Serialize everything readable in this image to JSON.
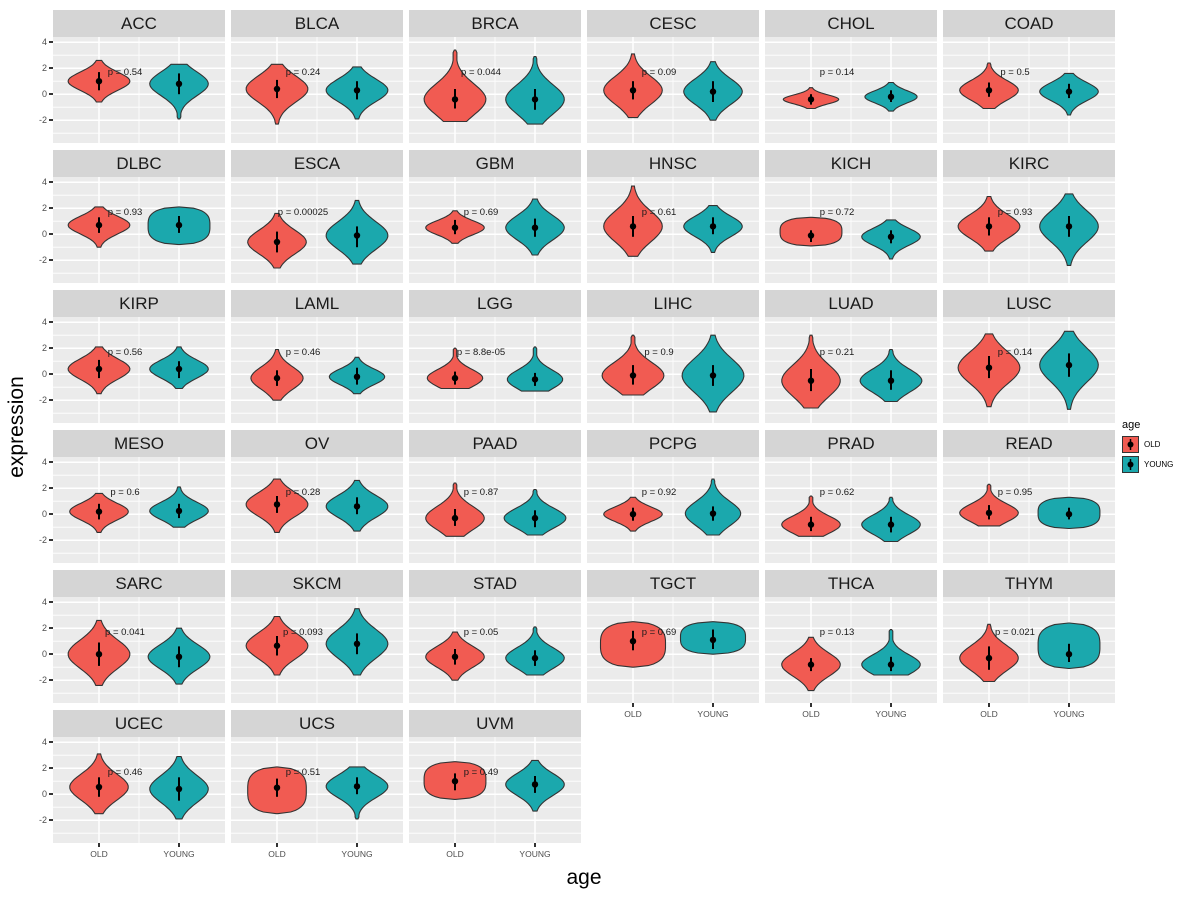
{
  "figure": {
    "y_axis_title": "expression",
    "x_axis_title": "age",
    "y_ticks": [
      4,
      2,
      0,
      -2
    ],
    "x_categories": [
      "OLD",
      "YOUNG"
    ],
    "legend": {
      "title": "age",
      "items": [
        {
          "label": "OLD",
          "color": "#F15B52"
        },
        {
          "label": "YOUNG",
          "color": "#1BA8AD"
        }
      ]
    },
    "colors": {
      "panel_background": "#EBEBEB",
      "strip_background": "#D5D5D5",
      "gridline": "#FFFFFF",
      "violin_outline": "#333333",
      "pointrange": "#000000",
      "tick_text": "#4D4D4D"
    }
  },
  "chart_data": {
    "type": "violin",
    "x_categories": [
      "OLD",
      "YOUNG"
    ],
    "y_axis": {
      "ticks": [
        4,
        2,
        0,
        -2
      ],
      "domain": [
        -3.75,
        4.4
      ]
    },
    "series_key": {
      "old_fields": "ext=[min,max] expression extent, med=median dot, iqr=[lo,hi] thick bar, w=relative max width"
    },
    "facets": [
      {
        "name": "ACC",
        "p": "p = 0.54",
        "old": {
          "ext": [
            -0.6,
            2.6
          ],
          "med": 1.0,
          "iqr": [
            0.3,
            1.7
          ],
          "w": 0.95
        },
        "young": {
          "ext": [
            -1.9,
            2.3
          ],
          "med": 0.8,
          "iqr": [
            0.0,
            1.6
          ],
          "w": 0.9
        }
      },
      {
        "name": "BLCA",
        "p": "p = 0.24",
        "old": {
          "ext": [
            -2.3,
            2.3
          ],
          "med": 0.4,
          "iqr": [
            -0.3,
            1.1
          ],
          "w": 0.95
        },
        "young": {
          "ext": [
            -1.9,
            2.1
          ],
          "med": 0.3,
          "iqr": [
            -0.4,
            1.0
          ],
          "w": 0.95
        }
      },
      {
        "name": "BRCA",
        "p": "p = 0.044",
        "old": {
          "ext": [
            -2.1,
            3.4
          ],
          "med": -0.4,
          "iqr": [
            -1.1,
            0.4
          ],
          "w": 0.95
        },
        "young": {
          "ext": [
            -2.3,
            2.9
          ],
          "med": -0.4,
          "iqr": [
            -1.2,
            0.4
          ],
          "w": 0.9
        }
      },
      {
        "name": "CESC",
        "p": "p = 0.09",
        "old": {
          "ext": [
            -1.8,
            3.1
          ],
          "med": 0.3,
          "iqr": [
            -0.4,
            1.0
          ],
          "w": 0.9
        },
        "young": {
          "ext": [
            -2.0,
            2.5
          ],
          "med": 0.2,
          "iqr": [
            -0.6,
            1.0
          ],
          "w": 0.9
        }
      },
      {
        "name": "CHOL",
        "p": "p = 0.14",
        "old": {
          "ext": [
            -1.1,
            0.5
          ],
          "med": -0.4,
          "iqr": [
            -0.8,
            0.0
          ],
          "w": 0.85
        },
        "young": {
          "ext": [
            -1.3,
            0.9
          ],
          "med": -0.2,
          "iqr": [
            -0.6,
            0.3
          ],
          "w": 0.8
        }
      },
      {
        "name": "COAD",
        "p": "p = 0.5",
        "old": {
          "ext": [
            -1.1,
            2.4
          ],
          "med": 0.3,
          "iqr": [
            -0.2,
            0.9
          ],
          "w": 0.9
        },
        "young": {
          "ext": [
            -1.6,
            1.6
          ],
          "med": 0.2,
          "iqr": [
            -0.3,
            0.8
          ],
          "w": 0.9
        }
      },
      {
        "name": "DLBC",
        "p": "p = 0.93",
        "old": {
          "ext": [
            -1.0,
            2.1
          ],
          "med": 0.7,
          "iqr": [
            0.1,
            1.3
          ],
          "w": 0.95
        },
        "young": {
          "ext": [
            -0.8,
            2.1
          ],
          "med": 0.7,
          "iqr": [
            0.1,
            1.4
          ],
          "w": 0.95,
          "shape": "blob"
        }
      },
      {
        "name": "ESCA",
        "p": "p = 0.00025",
        "old": {
          "ext": [
            -2.6,
            1.6
          ],
          "med": -0.6,
          "iqr": [
            -1.4,
            0.2
          ],
          "w": 0.9
        },
        "young": {
          "ext": [
            -2.3,
            2.6
          ],
          "med": -0.1,
          "iqr": [
            -1.0,
            0.6
          ],
          "w": 0.95
        }
      },
      {
        "name": "GBM",
        "p": "p = 0.69",
        "old": {
          "ext": [
            -0.7,
            1.8
          ],
          "med": 0.5,
          "iqr": [
            0.0,
            1.1
          ],
          "w": 0.9
        },
        "young": {
          "ext": [
            -1.6,
            2.7
          ],
          "med": 0.5,
          "iqr": [
            -0.2,
            1.2
          ],
          "w": 0.9
        }
      },
      {
        "name": "HNSC",
        "p": "p = 0.61",
        "old": {
          "ext": [
            -1.7,
            3.7
          ],
          "med": 0.6,
          "iqr": [
            -0.2,
            1.4
          ],
          "w": 0.9
        },
        "young": {
          "ext": [
            -1.4,
            2.2
          ],
          "med": 0.6,
          "iqr": [
            0.0,
            1.3
          ],
          "w": 0.9
        }
      },
      {
        "name": "KICH",
        "p": "p = 0.72",
        "old": {
          "ext": [
            -0.9,
            1.3
          ],
          "med": -0.1,
          "iqr": [
            -0.6,
            0.3
          ],
          "w": 0.95,
          "shape": "blob"
        },
        "young": {
          "ext": [
            -1.9,
            1.1
          ],
          "med": -0.2,
          "iqr": [
            -0.7,
            0.3
          ],
          "w": 0.9
        }
      },
      {
        "name": "KIRC",
        "p": "p = 0.93",
        "old": {
          "ext": [
            -1.3,
            2.9
          ],
          "med": 0.6,
          "iqr": [
            -0.1,
            1.3
          ],
          "w": 0.95
        },
        "young": {
          "ext": [
            -2.4,
            3.1
          ],
          "med": 0.6,
          "iqr": [
            -0.2,
            1.4
          ],
          "w": 0.9
        }
      },
      {
        "name": "KIRP",
        "p": "p = 0.56",
        "old": {
          "ext": [
            -1.5,
            2.1
          ],
          "med": 0.4,
          "iqr": [
            -0.3,
            1.1
          ],
          "w": 0.95
        },
        "young": {
          "ext": [
            -1.1,
            2.1
          ],
          "med": 0.4,
          "iqr": [
            -0.3,
            1.0
          ],
          "w": 0.9
        }
      },
      {
        "name": "LAML",
        "p": "p = 0.46",
        "old": {
          "ext": [
            -2.0,
            1.9
          ],
          "med": -0.3,
          "iqr": [
            -0.9,
            0.3
          ],
          "w": 0.8
        },
        "young": {
          "ext": [
            -1.5,
            1.3
          ],
          "med": -0.2,
          "iqr": [
            -0.8,
            0.5
          ],
          "w": 0.85
        }
      },
      {
        "name": "LGG",
        "p": "p = 8.8e-05",
        "old": {
          "ext": [
            -1.1,
            2.0
          ],
          "med": -0.3,
          "iqr": [
            -0.8,
            0.2
          ],
          "w": 0.85
        },
        "young": {
          "ext": [
            -1.3,
            2.1
          ],
          "med": -0.4,
          "iqr": [
            -0.9,
            0.1
          ],
          "w": 0.85
        }
      },
      {
        "name": "LIHC",
        "p": "p = 0.9",
        "old": {
          "ext": [
            -1.6,
            3.0
          ],
          "med": -0.1,
          "iqr": [
            -0.8,
            0.7
          ],
          "w": 0.95
        },
        "young": {
          "ext": [
            -2.9,
            3.0
          ],
          "med": -0.1,
          "iqr": [
            -0.9,
            0.7
          ],
          "w": 0.95
        }
      },
      {
        "name": "LUAD",
        "p": "p = 0.21",
        "old": {
          "ext": [
            -2.6,
            3.0
          ],
          "med": -0.5,
          "iqr": [
            -1.3,
            0.4
          ],
          "w": 0.9
        },
        "young": {
          "ext": [
            -2.1,
            1.9
          ],
          "med": -0.5,
          "iqr": [
            -1.2,
            0.3
          ],
          "w": 0.95
        }
      },
      {
        "name": "LUSC",
        "p": "p = 0.14",
        "old": {
          "ext": [
            -2.5,
            3.1
          ],
          "med": 0.5,
          "iqr": [
            -0.3,
            1.4
          ],
          "w": 0.95
        },
        "young": {
          "ext": [
            -2.7,
            3.3
          ],
          "med": 0.7,
          "iqr": [
            -0.2,
            1.6
          ],
          "w": 0.9
        }
      },
      {
        "name": "MESO",
        "p": "p = 0.6",
        "old": {
          "ext": [
            -1.4,
            1.6
          ],
          "med": 0.2,
          "iqr": [
            -0.4,
            0.8
          ],
          "w": 0.9
        },
        "young": {
          "ext": [
            -1.0,
            2.1
          ],
          "med": 0.25,
          "iqr": [
            -0.3,
            0.8
          ],
          "w": 0.9
        }
      },
      {
        "name": "OV",
        "p": "p = 0.28",
        "old": {
          "ext": [
            -1.4,
            2.7
          ],
          "med": 0.75,
          "iqr": [
            0.1,
            1.4
          ],
          "w": 0.95
        },
        "young": {
          "ext": [
            -1.3,
            2.6
          ],
          "med": 0.6,
          "iqr": [
            0.0,
            1.3
          ],
          "w": 0.95
        }
      },
      {
        "name": "PAAD",
        "p": "p = 0.87",
        "old": {
          "ext": [
            -1.7,
            2.4
          ],
          "med": -0.3,
          "iqr": [
            -0.9,
            0.4
          ],
          "w": 0.9
        },
        "young": {
          "ext": [
            -1.6,
            1.9
          ],
          "med": -0.3,
          "iqr": [
            -1.0,
            0.3
          ],
          "w": 0.95
        }
      },
      {
        "name": "PCPG",
        "p": "p = 0.92",
        "old": {
          "ext": [
            -1.3,
            1.3
          ],
          "med": 0.0,
          "iqr": [
            -0.5,
            0.5
          ],
          "w": 0.9
        },
        "young": {
          "ext": [
            -1.6,
            2.7
          ],
          "med": 0.05,
          "iqr": [
            -0.5,
            0.6
          ],
          "w": 0.85
        }
      },
      {
        "name": "PRAD",
        "p": "p = 0.62",
        "old": {
          "ext": [
            -1.7,
            1.4
          ],
          "med": -0.8,
          "iqr": [
            -1.3,
            -0.2
          ],
          "w": 0.9
        },
        "young": {
          "ext": [
            -2.1,
            1.3
          ],
          "med": -0.8,
          "iqr": [
            -1.4,
            -0.2
          ],
          "w": 0.9
        }
      },
      {
        "name": "READ",
        "p": "p = 0.95",
        "old": {
          "ext": [
            -0.9,
            2.3
          ],
          "med": 0.1,
          "iqr": [
            -0.4,
            0.7
          ],
          "w": 0.9
        },
        "young": {
          "ext": [
            -1.1,
            1.3
          ],
          "med": 0.0,
          "iqr": [
            -0.4,
            0.5
          ],
          "w": 0.95,
          "shape": "blob"
        }
      },
      {
        "name": "SARC",
        "p": "p = 0.041",
        "old": {
          "ext": [
            -2.4,
            2.6
          ],
          "med": 0.0,
          "iqr": [
            -0.9,
            0.9
          ],
          "w": 0.95
        },
        "young": {
          "ext": [
            -2.3,
            2.0
          ],
          "med": -0.2,
          "iqr": [
            -1.0,
            0.6
          ],
          "w": 0.95
        }
      },
      {
        "name": "SKCM",
        "p": "p = 0.093",
        "old": {
          "ext": [
            -1.6,
            2.9
          ],
          "med": 0.65,
          "iqr": [
            -0.1,
            1.4
          ],
          "w": 0.95
        },
        "young": {
          "ext": [
            -1.6,
            3.5
          ],
          "med": 0.8,
          "iqr": [
            0.0,
            1.6
          ],
          "w": 0.95
        }
      },
      {
        "name": "STAD",
        "p": "p = 0.05",
        "old": {
          "ext": [
            -2.0,
            1.7
          ],
          "med": -0.2,
          "iqr": [
            -0.8,
            0.4
          ],
          "w": 0.9
        },
        "young": {
          "ext": [
            -1.6,
            2.1
          ],
          "med": -0.3,
          "iqr": [
            -0.9,
            0.3
          ],
          "w": 0.9
        }
      },
      {
        "name": "TGCT",
        "p": "p = 0.69",
        "old": {
          "ext": [
            -1.0,
            2.5
          ],
          "med": 1.0,
          "iqr": [
            0.3,
            1.8
          ],
          "w": 1.0,
          "shape": "blob"
        },
        "young": {
          "ext": [
            0.0,
            2.5
          ],
          "med": 1.1,
          "iqr": [
            0.4,
            1.9
          ],
          "w": 1.0,
          "shape": "blob"
        }
      },
      {
        "name": "THCA",
        "p": "p = 0.13",
        "old": {
          "ext": [
            -2.8,
            1.3
          ],
          "med": -0.8,
          "iqr": [
            -1.3,
            -0.3
          ],
          "w": 0.9
        },
        "young": {
          "ext": [
            -1.6,
            1.9
          ],
          "med": -0.8,
          "iqr": [
            -1.3,
            -0.2
          ],
          "w": 0.9
        }
      },
      {
        "name": "THYM",
        "p": "p = 0.021",
        "old": {
          "ext": [
            -2.1,
            2.3
          ],
          "med": -0.3,
          "iqr": [
            -1.2,
            0.6
          ],
          "w": 0.9
        },
        "young": {
          "ext": [
            -1.1,
            2.4
          ],
          "med": 0.0,
          "iqr": [
            -0.6,
            0.8
          ],
          "w": 0.95,
          "shape": "blob"
        }
      },
      {
        "name": "UCEC",
        "p": "p = 0.46",
        "old": {
          "ext": [
            -1.5,
            3.1
          ],
          "med": 0.55,
          "iqr": [
            -0.2,
            1.3
          ],
          "w": 0.9
        },
        "young": {
          "ext": [
            -1.9,
            2.9
          ],
          "med": 0.4,
          "iqr": [
            -0.5,
            1.3
          ],
          "w": 0.9
        }
      },
      {
        "name": "UCS",
        "p": "p = 0.51",
        "old": {
          "ext": [
            -1.5,
            2.1
          ],
          "med": 0.5,
          "iqr": [
            -0.2,
            1.2
          ],
          "w": 0.9,
          "shape": "blob"
        },
        "young": {
          "ext": [
            -1.9,
            2.1
          ],
          "med": 0.6,
          "iqr": [
            0.0,
            1.3
          ],
          "w": 0.95
        }
      },
      {
        "name": "UVM",
        "p": "p = 0.49",
        "old": {
          "ext": [
            -0.4,
            2.5
          ],
          "med": 1.0,
          "iqr": [
            0.3,
            1.6
          ],
          "w": 0.95,
          "shape": "blob"
        },
        "young": {
          "ext": [
            -1.3,
            2.6
          ],
          "med": 0.75,
          "iqr": [
            0.1,
            1.4
          ],
          "w": 0.9
        }
      }
    ]
  }
}
